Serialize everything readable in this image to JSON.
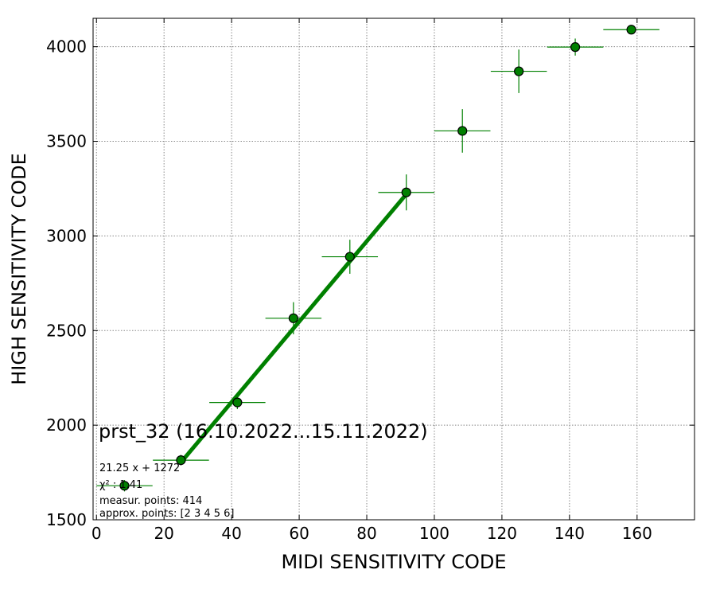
{
  "chart_data": {
    "type": "scatter",
    "title": "",
    "xlabel": "MIDI SENSITIVITY CODE",
    "ylabel": "HIGH SENSITIVITY CODE",
    "xlim": [
      -1,
      177
    ],
    "ylim": [
      1500,
      4150
    ],
    "xticks": [
      0,
      20,
      40,
      60,
      80,
      100,
      120,
      140,
      160
    ],
    "yticks": [
      1500,
      2000,
      2500,
      3000,
      3500,
      4000
    ],
    "grid": true,
    "colors": {
      "marker": "#008000",
      "errorbar": "#008000",
      "fit_line": "#008000",
      "grid": "#888888"
    },
    "series": [
      {
        "points": [
          {
            "x": 8.3,
            "y": 1680,
            "xerr": 8.3,
            "yerr": 30
          },
          {
            "x": 25,
            "y": 1815,
            "xerr": 8.3,
            "yerr": 28
          },
          {
            "x": 41.7,
            "y": 2120,
            "xerr": 8.3,
            "yerr": 35
          },
          {
            "x": 58.3,
            "y": 2565,
            "xerr": 8.3,
            "yerr": 85
          },
          {
            "x": 75,
            "y": 2890,
            "xerr": 8.3,
            "yerr": 90
          },
          {
            "x": 91.7,
            "y": 3230,
            "xerr": 8.3,
            "yerr": 95
          },
          {
            "x": 108.3,
            "y": 3555,
            "xerr": 8.3,
            "yerr": 115
          },
          {
            "x": 125,
            "y": 3870,
            "xerr": 8.3,
            "yerr": 115
          },
          {
            "x": 141.7,
            "y": 3998,
            "xerr": 8.3,
            "yerr": 45
          },
          {
            "x": 158.3,
            "y": 4090,
            "xerr": 8.3,
            "yerr": 20
          }
        ]
      }
    ],
    "fit_line": {
      "slope": 21.25,
      "intercept": 1272,
      "x_range": [
        25,
        91.7
      ]
    },
    "annotations": {
      "station": "prst_32 (16.10.2022...15.11.2022)",
      "formula": "21.25 x + 1272",
      "chi2": "χ² : 1.41",
      "measur_points": "measur. points: 414",
      "approx_points": "approx. points: [2 3 4 5 6]"
    }
  }
}
